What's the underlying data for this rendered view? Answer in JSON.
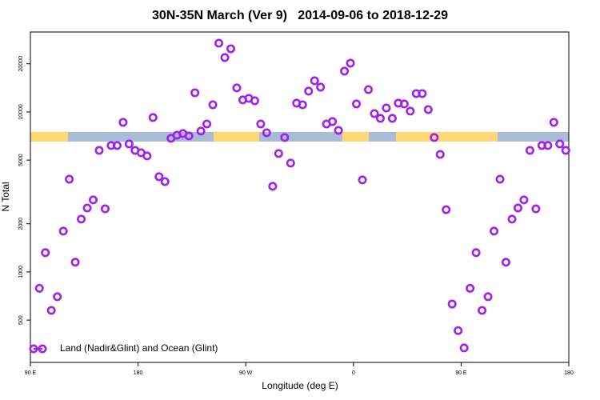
{
  "chart_data": {
    "type": "scatter",
    "title": "30N-35N March (Ver 9)   2014-09-06 to 2018-12-29",
    "x_label": "Longitude (deg E)",
    "y_label": "N Total",
    "log_y": true,
    "legend": "bottomleft",
    "xlim": [
      90,
      540
    ],
    "xticks": [
      {
        "value": 90,
        "label": "90 E"
      },
      180,
      {
        "value": 270,
        "label": "90 W"
      },
      {
        "value": 360,
        "label": "0"
      },
      {
        "value": 450,
        "label": "90 E"
      },
      {
        "value": 540,
        "label": "180"
      }
    ],
    "ylim": [
      272,
      31600
    ],
    "yticks": [
      500,
      1000,
      2000,
      5000,
      10000,
      20000
    ],
    "x": [
      97.5,
      102.5,
      107.5,
      112.5,
      117.5,
      122.5,
      127.5,
      132.5,
      137.5,
      142.5,
      147.5,
      152.5,
      157.5,
      162.5,
      167.5,
      172.5,
      177.5,
      182.5,
      187.5,
      192.5,
      197.5,
      202.5,
      207.5,
      212.5,
      217.5,
      222.5,
      227.5,
      232.5,
      237.5,
      242.5,
      247.5,
      252.5,
      257.5,
      262.5,
      267.5,
      272.5,
      277.5,
      282.5,
      287.5,
      292.5,
      297.5,
      302.5,
      307.5,
      312.5,
      317.5,
      322.5,
      327.5,
      332.5,
      337.5,
      342.5,
      347.5,
      352.5,
      357.5,
      362.5,
      367.5,
      372.5,
      377.5,
      382.5,
      387.5,
      392.5,
      397.5,
      402.5,
      407.5,
      412.5,
      417.5,
      422.5,
      427.5,
      432.5,
      437.5,
      442.5,
      447.5,
      452.5,
      457.5,
      462.5,
      467.5,
      472.5,
      477.5,
      482.5,
      487.5,
      492.5,
      497.5,
      502.5,
      507.5,
      512.5,
      517.5,
      522.5,
      527.5,
      532.5,
      537.5
    ],
    "series": [
      {
        "name": "Land (Nadir&Glint) and Ocean (Glint)",
        "color": "#a020f0",
        "values": [
          790,
          1320,
          575,
          700,
          1800,
          3800,
          1150,
          2140,
          2510,
          2820,
          5750,
          2480,
          6170,
          6170,
          8610,
          6310,
          5750,
          5560,
          5310,
          9230,
          3940,
          3670,
          6840,
          7160,
          7330,
          7080,
          13180,
          7590,
          8410,
          11090,
          26900,
          21880,
          24830,
          14130,
          11890,
          12160,
          11750,
          8410,
          7410,
          3430,
          5500,
          6920,
          4790,
          11350,
          11090,
          13490,
          15670,
          14290,
          8410,
          8710,
          7670,
          17990,
          20180,
          11220,
          3760,
          13800,
          9770,
          9120,
          10590,
          9120,
          11350,
          11220,
          10120,
          13030,
          13030,
          10350,
          6920,
          5430,
          2450,
          630,
          430,
          335,
          790,
          1320,
          575,
          700,
          1800,
          3800,
          1150,
          2140,
          2510,
          2820,
          5750,
          2480,
          6170,
          6170,
          8610,
          6310,
          5750
        ]
      }
    ]
  }
}
